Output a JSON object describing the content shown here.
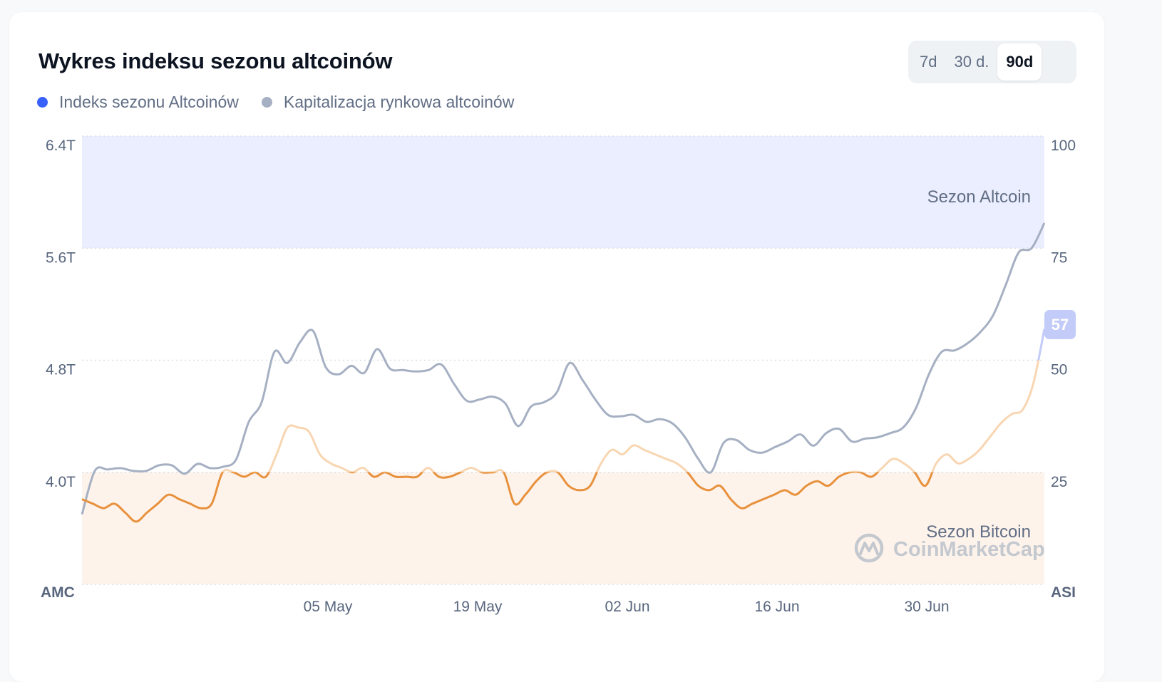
{
  "header": {
    "title": "Wykres indeksu sezonu altcoinów",
    "ranges": [
      {
        "label": "7d",
        "active": false
      },
      {
        "label": "30 d.",
        "active": false
      },
      {
        "label": "90d",
        "active": true
      }
    ]
  },
  "legend": [
    {
      "label": "Indeks sezonu Altcoinów",
      "color": "#3861fb"
    },
    {
      "label": "Kapitalizacja rynkowa altcoinów",
      "color": "#a6b0c3"
    }
  ],
  "watermark": {
    "text": "CoinMarketCap",
    "icon": "coinmarketcap-logo-icon"
  },
  "chart_data": {
    "type": "line",
    "left_axis": {
      "name": "AMC",
      "ticks": [
        "6.4T",
        "5.6T",
        "4.8T",
        "4.0T"
      ],
      "range_T": [
        3.2,
        6.4
      ]
    },
    "right_axis": {
      "name": "ASI",
      "ticks": [
        "100",
        "75",
        "50",
        "25"
      ],
      "range": [
        0,
        100
      ]
    },
    "x_ticks": [
      "05 May",
      "19 May",
      "02 Jun",
      "16 Jun",
      "30 Jun"
    ],
    "x_tick_days": [
      23,
      37,
      51,
      65,
      79
    ],
    "x_range_days": [
      0,
      90
    ],
    "zones": [
      {
        "label": "Sezon Altcoin",
        "from": 75,
        "to": 100,
        "color": "#ebeefe"
      },
      {
        "label": "Sezon Bitcoin",
        "from": 0,
        "to": 25,
        "color": "#fdf3eb"
      }
    ],
    "current_index": "57",
    "index_colors": {
      "bitcoin": "#e8913d",
      "neutral": "#f8d6b2",
      "altcoin": "#c3cbf9"
    },
    "index_series": {
      "name": "Indeks sezonu Altcoinów",
      "values": [
        19,
        18,
        17,
        18,
        16,
        14,
        16,
        18,
        20,
        19,
        18,
        17,
        18,
        25,
        25,
        24,
        25,
        24,
        29,
        35,
        35,
        34,
        29,
        27,
        26,
        25,
        26,
        24,
        25,
        24,
        24,
        24,
        26,
        24,
        24,
        25,
        26,
        25,
        25,
        25,
        18,
        20,
        23,
        25,
        25,
        22,
        21,
        22,
        27,
        30,
        29,
        31,
        30,
        29,
        28,
        27,
        25,
        22,
        21,
        22,
        19,
        17,
        18,
        19,
        20,
        21,
        20,
        22,
        23,
        22,
        24,
        25,
        25,
        24,
        26,
        28,
        27,
        25,
        22,
        27,
        29,
        27,
        28,
        30,
        33,
        36,
        38,
        39,
        45,
        57
      ]
    },
    "cap_series": {
      "name": "Kapitalizacja rynkowa altcoinów",
      "values_T": [
        3.7,
        4.01,
        4.02,
        4.03,
        4.01,
        4.01,
        4.05,
        4.05,
        3.99,
        4.06,
        4.03,
        4.04,
        4.09,
        4.36,
        4.5,
        4.86,
        4.78,
        4.93,
        5.01,
        4.75,
        4.7,
        4.76,
        4.71,
        4.88,
        4.74,
        4.73,
        4.72,
        4.73,
        4.77,
        4.63,
        4.51,
        4.52,
        4.54,
        4.49,
        4.33,
        4.47,
        4.5,
        4.57,
        4.78,
        4.66,
        4.52,
        4.41,
        4.4,
        4.41,
        4.36,
        4.38,
        4.35,
        4.25,
        4.1,
        4.0,
        4.21,
        4.23,
        4.16,
        4.14,
        4.18,
        4.22,
        4.27,
        4.19,
        4.28,
        4.31,
        4.22,
        4.24,
        4.25,
        4.28,
        4.32,
        4.46,
        4.7,
        4.86,
        4.87,
        4.92,
        5.0,
        5.12,
        5.34,
        5.57,
        5.6,
        5.78
      ]
    }
  }
}
